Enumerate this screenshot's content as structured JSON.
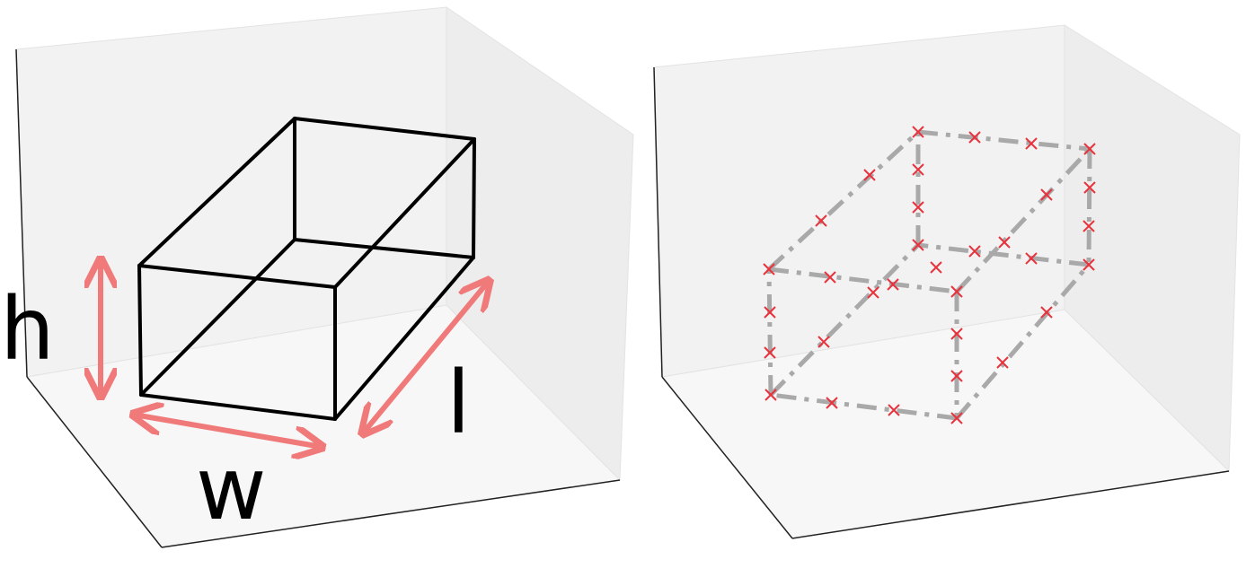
{
  "panels": [
    {
      "id": "left-panel",
      "dimension_labels": {
        "height": "h",
        "width": "w",
        "length": "l"
      }
    },
    {
      "id": "right-panel",
      "dimension_labels": {}
    }
  ],
  "colors": {
    "box_edge": "#000000",
    "dimension_arrow": "#f07a7a",
    "dashed_edge": "#a9a9a9",
    "sample_marker": "#e8323c",
    "pane_light": "#f3f3f3",
    "pane_floor": "#f7f7f7",
    "pane_edge": "#e2e2e2",
    "axis_line": "#222222"
  }
}
